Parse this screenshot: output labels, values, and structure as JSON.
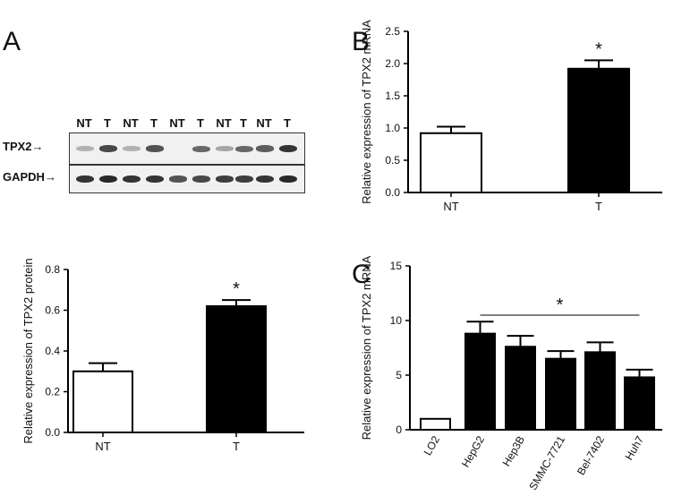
{
  "panels": {
    "a": "A",
    "b": "B",
    "c": "C"
  },
  "blot": {
    "lanes": [
      "NT",
      "T",
      "NT",
      "T",
      "NT",
      "T",
      "NT",
      "T",
      "NT",
      "T"
    ],
    "rows": [
      {
        "label": "TPX2→",
        "name": "tpx2-row",
        "intensity": [
          0.25,
          0.75,
          0.25,
          0.7,
          0.0,
          0.6,
          0.3,
          0.6,
          0.65,
          0.85
        ]
      },
      {
        "label": "GAPDH→",
        "name": "gapdh-row",
        "intensity": [
          0.85,
          0.9,
          0.85,
          0.85,
          0.7,
          0.75,
          0.8,
          0.8,
          0.85,
          0.9
        ]
      }
    ]
  },
  "chart_data": [
    {
      "id": "protein",
      "type": "bar",
      "categories": [
        "NT",
        "T"
      ],
      "values": [
        0.3,
        0.62
      ],
      "errors": [
        0.04,
        0.03
      ],
      "fills": [
        "#ffffff",
        "#000000"
      ],
      "ylabel": "Relative expression of TPX2 protein",
      "ylim": [
        0,
        0.8
      ],
      "yticks": [
        "0.0",
        "0.2",
        "0.4",
        "0.6",
        "0.8"
      ],
      "yticks_values": [
        0,
        0.2,
        0.4,
        0.6,
        0.8
      ],
      "significance": {
        "label": "*",
        "category": "T"
      }
    },
    {
      "id": "mrna",
      "type": "bar",
      "categories": [
        "NT",
        "T"
      ],
      "values": [
        0.92,
        1.92
      ],
      "errors": [
        0.1,
        0.13
      ],
      "fills": [
        "#ffffff",
        "#000000"
      ],
      "ylabel": "Relative expression of TPX2 mRNA",
      "ylim": [
        0,
        2.5
      ],
      "yticks": [
        "0.0",
        "0.5",
        "1.0",
        "1.5",
        "2.0",
        "2.5"
      ],
      "yticks_values": [
        0,
        0.5,
        1.0,
        1.5,
        2.0,
        2.5
      ],
      "significance": {
        "label": "*",
        "category": "T"
      }
    },
    {
      "id": "cells",
      "type": "bar",
      "categories": [
        "LO2",
        "HepG2",
        "Hep3B",
        "SMMC-7721",
        "Bel-7402",
        "Huh7"
      ],
      "values": [
        1.0,
        8.8,
        7.6,
        6.5,
        7.1,
        4.8
      ],
      "errors": [
        0.0,
        1.1,
        1.0,
        0.7,
        0.9,
        0.7
      ],
      "fills": [
        "#ffffff",
        "#000000",
        "#000000",
        "#000000",
        "#000000",
        "#000000"
      ],
      "ylabel": "Relative expression of TPX2 mRNA",
      "ylim": [
        0,
        15
      ],
      "yticks": [
        "0",
        "5",
        "10",
        "15"
      ],
      "yticks_values": [
        0,
        5,
        10,
        15
      ],
      "significance": {
        "label": "*",
        "from": "HepG2",
        "to": "Huh7"
      }
    }
  ]
}
